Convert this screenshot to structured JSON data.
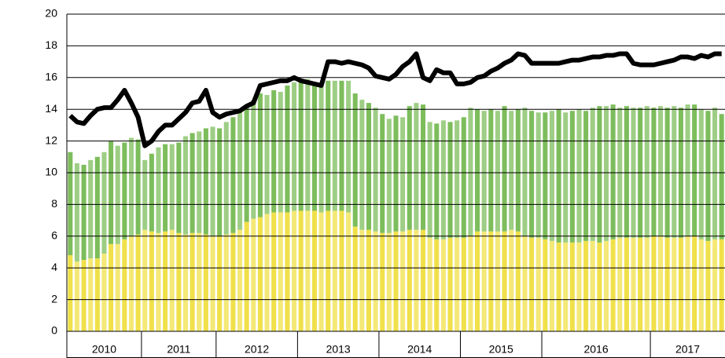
{
  "chart_data": {
    "type": "stacked_bar_line",
    "categories": [
      "2010",
      "2010",
      "2010",
      "2010",
      "2010",
      "2010",
      "2010",
      "2010",
      "2010",
      "2010",
      "2010",
      "2011",
      "2011",
      "2011",
      "2011",
      "2011",
      "2011",
      "2011",
      "2011",
      "2011",
      "2011",
      "2011",
      "2012",
      "2012",
      "2012",
      "2012",
      "2012",
      "2012",
      "2012",
      "2012",
      "2012",
      "2012",
      "2012",
      "2012",
      "2013",
      "2013",
      "2013",
      "2013",
      "2013",
      "2013",
      "2013",
      "2013",
      "2013",
      "2013",
      "2013",
      "2013",
      "2014",
      "2014",
      "2014",
      "2014",
      "2014",
      "2014",
      "2014",
      "2014",
      "2014",
      "2014",
      "2014",
      "2014",
      "2015",
      "2015",
      "2015",
      "2015",
      "2015",
      "2015",
      "2015",
      "2015",
      "2015",
      "2015",
      "2015",
      "2015",
      "2016",
      "2016",
      "2016",
      "2016",
      "2016",
      "2016",
      "2016",
      "2016",
      "2016",
      "2016",
      "2016",
      "2016",
      "2016",
      "2016",
      "2016",
      "2016",
      "2017",
      "2017",
      "2017",
      "2017",
      "2017",
      "2017",
      "2017",
      "2017",
      "2017",
      "2017",
      "2017"
    ],
    "series": [
      {
        "color": "#f0e04a",
        "kind": "bar",
        "values": [
          4.8,
          4.4,
          4.5,
          4.6,
          4.6,
          4.9,
          5.5,
          5.5,
          5.8,
          6.0,
          6.1,
          6.4,
          6.3,
          6.2,
          6.3,
          6.4,
          6.2,
          6.1,
          6.2,
          6.2,
          6.1,
          6.0,
          6.0,
          6.1,
          6.2,
          6.4,
          6.9,
          7.1,
          7.2,
          7.4,
          7.5,
          7.5,
          7.5,
          7.6,
          7.6,
          7.6,
          7.6,
          7.5,
          7.6,
          7.6,
          7.6,
          7.5,
          6.6,
          6.4,
          6.4,
          6.3,
          6.2,
          6.2,
          6.3,
          6.3,
          6.4,
          6.4,
          6.4,
          5.9,
          5.8,
          5.8,
          5.9,
          5.9,
          5.9,
          6.0,
          6.3,
          6.3,
          6.3,
          6.3,
          6.3,
          6.4,
          6.3,
          6.0,
          5.9,
          5.9,
          5.8,
          5.7,
          5.6,
          5.6,
          5.6,
          5.6,
          5.7,
          5.7,
          5.6,
          5.7,
          5.8,
          5.9,
          5.9,
          5.9,
          5.9,
          5.9,
          6.0,
          6.0,
          5.9,
          5.9,
          5.9,
          6.0,
          6.0,
          5.8,
          5.7,
          5.8,
          5.8
        ]
      },
      {
        "color": "#7dbd5c",
        "kind": "bar",
        "values": [
          6.5,
          6.2,
          6.0,
          6.2,
          6.4,
          6.4,
          6.5,
          6.2,
          6.1,
          6.2,
          6.0,
          4.4,
          4.9,
          5.4,
          5.5,
          5.4,
          5.7,
          6.2,
          6.3,
          6.4,
          6.7,
          6.9,
          6.8,
          7.1,
          7.3,
          7.4,
          7.3,
          7.5,
          7.8,
          7.5,
          7.7,
          7.6,
          8.0,
          8.1,
          8.2,
          8.3,
          8.1,
          8.1,
          8.2,
          8.2,
          8.2,
          8.3,
          8.4,
          8.2,
          8.0,
          7.8,
          7.5,
          7.2,
          7.3,
          7.2,
          7.8,
          8.0,
          7.9,
          7.3,
          7.3,
          7.5,
          7.3,
          7.4,
          7.6,
          8.1,
          7.7,
          7.6,
          7.7,
          7.6,
          7.9,
          7.5,
          7.7,
          8.1,
          8.0,
          7.9,
          8.0,
          8.2,
          8.4,
          8.2,
          8.3,
          8.4,
          8.2,
          8.4,
          8.6,
          8.5,
          8.5,
          8.2,
          8.3,
          8.2,
          8.2,
          8.3,
          8.1,
          8.2,
          8.2,
          8.3,
          8.2,
          8.3,
          8.3,
          8.2,
          8.2,
          8.3,
          7.9
        ]
      },
      {
        "color": "#000000",
        "kind": "line",
        "values": [
          13.6,
          13.2,
          13.1,
          13.6,
          14.0,
          14.1,
          14.1,
          14.6,
          15.2,
          14.4,
          13.5,
          11.7,
          12.0,
          12.6,
          13.0,
          13.0,
          13.4,
          13.8,
          14.4,
          14.5,
          15.2,
          13.8,
          13.5,
          13.7,
          13.8,
          13.9,
          14.2,
          14.4,
          15.5,
          15.6,
          15.7,
          15.8,
          15.8,
          16.0,
          15.8,
          15.7,
          15.6,
          15.5,
          17.0,
          17.0,
          16.9,
          17.0,
          16.9,
          16.8,
          16.6,
          16.1,
          16.0,
          15.9,
          16.2,
          16.7,
          17.0,
          17.5,
          16.0,
          15.8,
          16.5,
          16.3,
          16.3,
          15.6,
          15.6,
          15.7,
          16.0,
          16.1,
          16.4,
          16.6,
          16.9,
          17.1,
          17.5,
          17.4,
          16.9,
          16.9,
          16.9,
          16.9,
          16.9,
          17.0,
          17.1,
          17.1,
          17.2,
          17.3,
          17.3,
          17.4,
          17.4,
          17.5,
          17.5,
          16.9,
          16.8,
          16.8,
          16.8,
          16.9,
          17.0,
          17.1,
          17.3,
          17.3,
          17.2,
          17.4,
          17.3,
          17.5,
          17.5
        ]
      }
    ],
    "ylim": [
      0,
      20
    ],
    "yticks": [
      0,
      2,
      4,
      6,
      8,
      10,
      12,
      14,
      16,
      18,
      20
    ],
    "grid": true
  }
}
